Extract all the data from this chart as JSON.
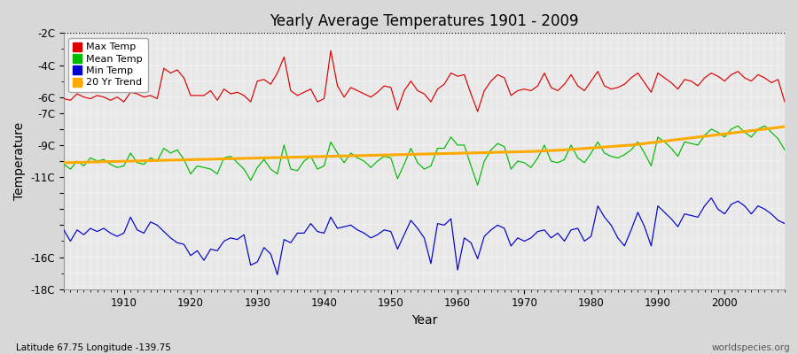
{
  "title": "Yearly Average Temperatures 1901 - 2009",
  "xlabel": "Year",
  "ylabel": "Temperature",
  "subtitle_left": "Latitude 67.75 Longitude -139.75",
  "subtitle_right": "worldspecies.org",
  "years": [
    1901,
    1902,
    1903,
    1904,
    1905,
    1906,
    1907,
    1908,
    1909,
    1910,
    1911,
    1912,
    1913,
    1914,
    1915,
    1916,
    1917,
    1918,
    1919,
    1920,
    1921,
    1922,
    1923,
    1924,
    1925,
    1926,
    1927,
    1928,
    1929,
    1930,
    1931,
    1932,
    1933,
    1934,
    1935,
    1936,
    1937,
    1938,
    1939,
    1940,
    1941,
    1942,
    1943,
    1944,
    1945,
    1946,
    1947,
    1948,
    1949,
    1950,
    1951,
    1952,
    1953,
    1954,
    1955,
    1956,
    1957,
    1958,
    1959,
    1960,
    1961,
    1962,
    1963,
    1964,
    1965,
    1966,
    1967,
    1968,
    1969,
    1970,
    1971,
    1972,
    1973,
    1974,
    1975,
    1976,
    1977,
    1978,
    1979,
    1980,
    1981,
    1982,
    1983,
    1984,
    1985,
    1986,
    1987,
    1988,
    1989,
    1990,
    1991,
    1992,
    1993,
    1994,
    1995,
    1996,
    1997,
    1998,
    1999,
    2000,
    2001,
    2002,
    2003,
    2004,
    2005,
    2006,
    2007,
    2008,
    2009
  ],
  "max_temp": [
    -6.1,
    -6.2,
    -5.8,
    -6.0,
    -6.1,
    -5.9,
    -6.0,
    -6.2,
    -6.0,
    -6.3,
    -5.7,
    -5.8,
    -6.0,
    -5.9,
    -6.1,
    -4.2,
    -4.5,
    -4.3,
    -4.8,
    -5.9,
    -5.9,
    -5.9,
    -5.6,
    -6.2,
    -5.5,
    -5.8,
    -5.7,
    -5.9,
    -6.3,
    -5.0,
    -4.9,
    -5.2,
    -4.5,
    -3.5,
    -5.6,
    -5.9,
    -5.7,
    -5.5,
    -6.3,
    -6.1,
    -3.1,
    -5.3,
    -6.0,
    -5.4,
    -5.6,
    -5.8,
    -6.0,
    -5.7,
    -5.3,
    -5.4,
    -6.8,
    -5.6,
    -5.0,
    -5.6,
    -5.8,
    -6.3,
    -5.5,
    -5.2,
    -4.5,
    -4.7,
    -4.6,
    -5.8,
    -6.9,
    -5.6,
    -5.0,
    -4.6,
    -4.8,
    -5.9,
    -5.6,
    -5.5,
    -5.6,
    -5.3,
    -4.5,
    -5.4,
    -5.6,
    -5.2,
    -4.6,
    -5.3,
    -5.6,
    -5.0,
    -4.4,
    -5.3,
    -5.5,
    -5.4,
    -5.2,
    -4.8,
    -4.5,
    -5.1,
    -5.7,
    -4.5,
    -4.8,
    -5.1,
    -5.5,
    -4.9,
    -5.0,
    -5.3,
    -4.8,
    -4.5,
    -4.7,
    -5.0,
    -4.6,
    -4.4,
    -4.8,
    -5.0,
    -4.6,
    -4.8,
    -5.1,
    -4.9,
    -6.3
  ],
  "mean_temp": [
    -10.2,
    -10.5,
    -10.0,
    -10.3,
    -9.8,
    -10.0,
    -9.9,
    -10.2,
    -10.4,
    -10.3,
    -9.5,
    -10.1,
    -10.2,
    -9.8,
    -10.0,
    -9.2,
    -9.5,
    -9.3,
    -9.9,
    -10.8,
    -10.3,
    -10.4,
    -10.5,
    -10.8,
    -9.8,
    -9.7,
    -10.1,
    -10.5,
    -11.2,
    -10.4,
    -9.9,
    -10.5,
    -10.8,
    -9.0,
    -10.5,
    -10.6,
    -10.0,
    -9.7,
    -10.5,
    -10.3,
    -8.8,
    -9.5,
    -10.1,
    -9.5,
    -9.8,
    -10.0,
    -10.4,
    -10.0,
    -9.7,
    -9.8,
    -11.1,
    -10.2,
    -9.2,
    -10.1,
    -10.5,
    -10.3,
    -9.2,
    -9.2,
    -8.5,
    -9.0,
    -9.0,
    -10.3,
    -11.5,
    -10.0,
    -9.3,
    -8.9,
    -9.1,
    -10.5,
    -10.0,
    -10.1,
    -10.4,
    -9.8,
    -9.0,
    -10.0,
    -10.1,
    -9.9,
    -9.0,
    -9.8,
    -10.1,
    -9.5,
    -8.8,
    -9.5,
    -9.7,
    -9.8,
    -9.6,
    -9.3,
    -8.8,
    -9.5,
    -10.3,
    -8.5,
    -8.8,
    -9.2,
    -9.7,
    -8.8,
    -8.9,
    -9.0,
    -8.4,
    -8.0,
    -8.2,
    -8.5,
    -8.0,
    -7.8,
    -8.2,
    -8.5,
    -8.0,
    -7.8,
    -8.2,
    -8.6,
    -9.3
  ],
  "min_temp": [
    -14.3,
    -15.0,
    -14.3,
    -14.6,
    -14.2,
    -14.4,
    -14.2,
    -14.5,
    -14.7,
    -14.5,
    -13.5,
    -14.3,
    -14.5,
    -13.8,
    -14.0,
    -14.4,
    -14.8,
    -15.1,
    -15.2,
    -15.9,
    -15.6,
    -16.2,
    -15.5,
    -15.6,
    -15.0,
    -14.8,
    -14.9,
    -14.6,
    -16.5,
    -16.3,
    -15.4,
    -15.8,
    -17.1,
    -14.9,
    -15.1,
    -14.5,
    -14.5,
    -13.9,
    -14.4,
    -14.5,
    -13.5,
    -14.2,
    -14.1,
    -14.0,
    -14.3,
    -14.5,
    -14.8,
    -14.6,
    -14.3,
    -14.4,
    -15.5,
    -14.6,
    -13.7,
    -14.2,
    -14.8,
    -16.4,
    -13.9,
    -14.0,
    -13.6,
    -16.8,
    -14.8,
    -15.1,
    -16.1,
    -14.7,
    -14.3,
    -14.0,
    -14.2,
    -15.3,
    -14.8,
    -15.0,
    -14.8,
    -14.4,
    -14.3,
    -14.8,
    -14.5,
    -15.0,
    -14.3,
    -14.2,
    -15.0,
    -14.7,
    -12.8,
    -13.5,
    -14.0,
    -14.8,
    -15.3,
    -14.3,
    -13.2,
    -14.1,
    -15.3,
    -12.8,
    -13.2,
    -13.6,
    -14.1,
    -13.3,
    -13.4,
    -13.5,
    -12.8,
    -12.3,
    -13.0,
    -13.3,
    -12.7,
    -12.5,
    -12.8,
    -13.3,
    -12.8,
    -13.0,
    -13.3,
    -13.7,
    -13.9
  ],
  "trend_20yr": [
    -10.1,
    -10.09,
    -10.08,
    -10.07,
    -10.06,
    -10.05,
    -10.04,
    -10.03,
    -10.02,
    -10.01,
    -10.0,
    -9.99,
    -9.98,
    -9.97,
    -9.96,
    -9.95,
    -9.94,
    -9.93,
    -9.92,
    -9.91,
    -9.9,
    -9.89,
    -9.88,
    -9.87,
    -9.86,
    -9.85,
    -9.84,
    -9.83,
    -9.82,
    -9.81,
    -9.8,
    -9.79,
    -9.78,
    -9.77,
    -9.76,
    -9.75,
    -9.74,
    -9.73,
    -9.72,
    -9.71,
    -9.7,
    -9.69,
    -9.68,
    -9.67,
    -9.66,
    -9.65,
    -9.64,
    -9.63,
    -9.62,
    -9.61,
    -9.6,
    -9.59,
    -9.58,
    -9.57,
    -9.56,
    -9.55,
    -9.54,
    -9.53,
    -9.52,
    -9.51,
    -9.5,
    -9.49,
    -9.48,
    -9.47,
    -9.46,
    -9.45,
    -9.44,
    -9.43,
    -9.42,
    -9.41,
    -9.4,
    -9.38,
    -9.36,
    -9.34,
    -9.32,
    -9.3,
    -9.27,
    -9.24,
    -9.21,
    -9.18,
    -9.15,
    -9.12,
    -9.09,
    -9.06,
    -9.03,
    -9.0,
    -8.95,
    -8.9,
    -8.85,
    -8.8,
    -8.75,
    -8.7,
    -8.65,
    -8.6,
    -8.55,
    -8.5,
    -8.45,
    -8.4,
    -8.35,
    -8.3,
    -8.25,
    -8.2,
    -8.15,
    -8.1,
    -8.05,
    -8.0,
    -7.95,
    -7.9,
    -7.85
  ],
  "ylim_min": -18,
  "ylim_max": -2,
  "ytick_positions": [
    -18,
    -16,
    -14,
    -13,
    -12,
    -11,
    -10,
    -9,
    -8,
    -7,
    -6,
    -4,
    -2
  ],
  "ytick_labels": [
    "-18C",
    "-16C",
    "",
    "",
    "",
    "-11C",
    "",
    "-9C",
    "",
    "-7C",
    "-6C",
    "-4C",
    "-2C"
  ],
  "xticks": [
    1910,
    1920,
    1930,
    1940,
    1950,
    1960,
    1970,
    1980,
    1990,
    2000
  ],
  "fig_bg_color": "#d8d8d8",
  "plot_bg_color": "#e8e8e8",
  "max_color": "#dd0000",
  "mean_color": "#00bb00",
  "min_color": "#0000cc",
  "trend_color": "#ffaa00",
  "grid_color": "#ffffff",
  "dotted_line_y": -2.0,
  "legend_labels": [
    "Max Temp",
    "Mean Temp",
    "Min Temp",
    "20 Yr Trend"
  ],
  "legend_colors": [
    "#dd0000",
    "#00bb00",
    "#0000cc",
    "#ffaa00"
  ]
}
